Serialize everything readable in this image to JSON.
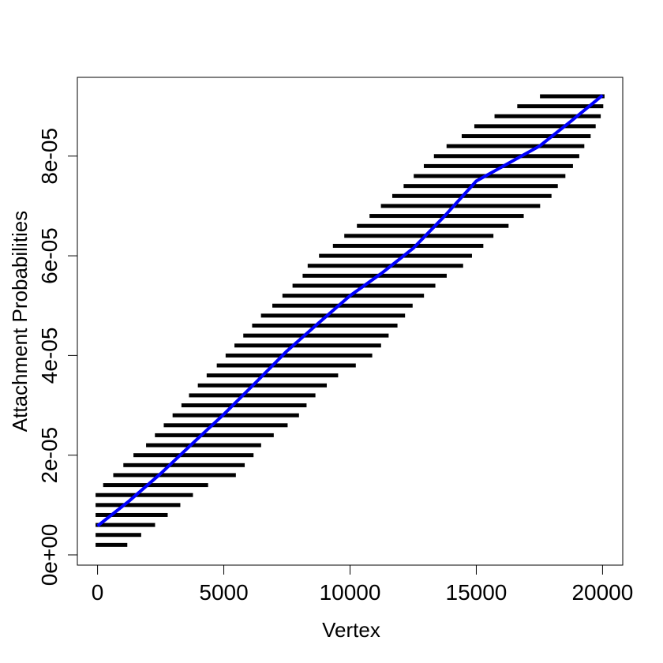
{
  "chart_data": {
    "type": "scatter",
    "xlabel": "Vertex",
    "ylabel": "Attachment Probabilities",
    "xlim": [
      -800,
      20800
    ],
    "ylim": [
      -2.06e-06,
      9.58e-05
    ],
    "xticks": [
      0,
      5000,
      10000,
      15000,
      20000
    ],
    "yticks": [
      {
        "value": 0,
        "label": "0e+00"
      },
      {
        "value": 2e-05,
        "label": "2e-05"
      },
      {
        "value": 4e-05,
        "label": "4e-05"
      },
      {
        "value": 6e-05,
        "label": "6e-05"
      },
      {
        "value": 8e-05,
        "label": "8e-05"
      }
    ],
    "color": "#000000",
    "rows": {
      "y": [
        2e-06,
        4e-06,
        6e-06,
        8e-06,
        1e-05,
        1.2e-05,
        1.4e-05,
        1.6e-05,
        1.8e-05,
        2e-05,
        2.2e-05,
        2.4e-05,
        2.6e-05,
        2.8e-05,
        3e-05,
        3.2e-05,
        3.4e-05,
        3.6e-05,
        3.8e-05,
        4e-05,
        4.2e-05,
        4.4e-05,
        4.6e-05,
        4.8e-05,
        5e-05,
        5.2e-05,
        5.4e-05,
        5.6e-05,
        5.8e-05,
        6e-05,
        6.2e-05,
        6.4e-05,
        6.6e-05,
        6.8e-05,
        7e-05,
        7.2e-05,
        7.4e-05,
        7.6e-05,
        7.8e-05,
        8e-05,
        8.2e-05,
        8.4e-05,
        8.6e-05,
        8.8e-05,
        9e-05,
        9.2e-05
      ],
      "x_start": [
        0,
        0,
        0,
        0,
        0,
        0,
        300,
        700,
        1100,
        1500,
        2000,
        2350,
        2700,
        3050,
        3400,
        3700,
        4050,
        4400,
        4800,
        5150,
        5500,
        5850,
        6200,
        6550,
        7000,
        7400,
        7800,
        8200,
        8400,
        8850,
        9400,
        9850,
        10350,
        10850,
        11300,
        11750,
        12200,
        12600,
        13000,
        13400,
        13900,
        14500,
        15000,
        15800,
        16700,
        17600
      ],
      "x_end": [
        1100,
        1650,
        2200,
        2700,
        3200,
        3700,
        4300,
        5400,
        5750,
        6100,
        6400,
        6900,
        7450,
        7900,
        8200,
        8550,
        9000,
        9450,
        10150,
        10800,
        11150,
        11450,
        11800,
        12100,
        12400,
        12850,
        13300,
        13750,
        14400,
        14750,
        15200,
        15600,
        16200,
        16800,
        17450,
        17900,
        18150,
        18450,
        18750,
        19000,
        19200,
        19450,
        19650,
        19850,
        19950,
        20000
      ]
    },
    "line": {
      "color": "#0000ff",
      "x": [
        0,
        1250,
        2500,
        3750,
        5000,
        6250,
        7500,
        8750,
        10000,
        11250,
        12500,
        13750,
        15000,
        16250,
        17500,
        18750,
        20000
      ],
      "y": [
        5.8e-06,
        1.08e-05,
        1.63e-05,
        2.23e-05,
        2.82e-05,
        3.45e-05,
        4.09e-05,
        4.65e-05,
        5.2e-05,
        5.65e-05,
        6.15e-05,
        6.8e-05,
        7.5e-05,
        7.85e-05,
        8.2e-05,
        8.7e-05,
        9.22e-05
      ]
    }
  }
}
